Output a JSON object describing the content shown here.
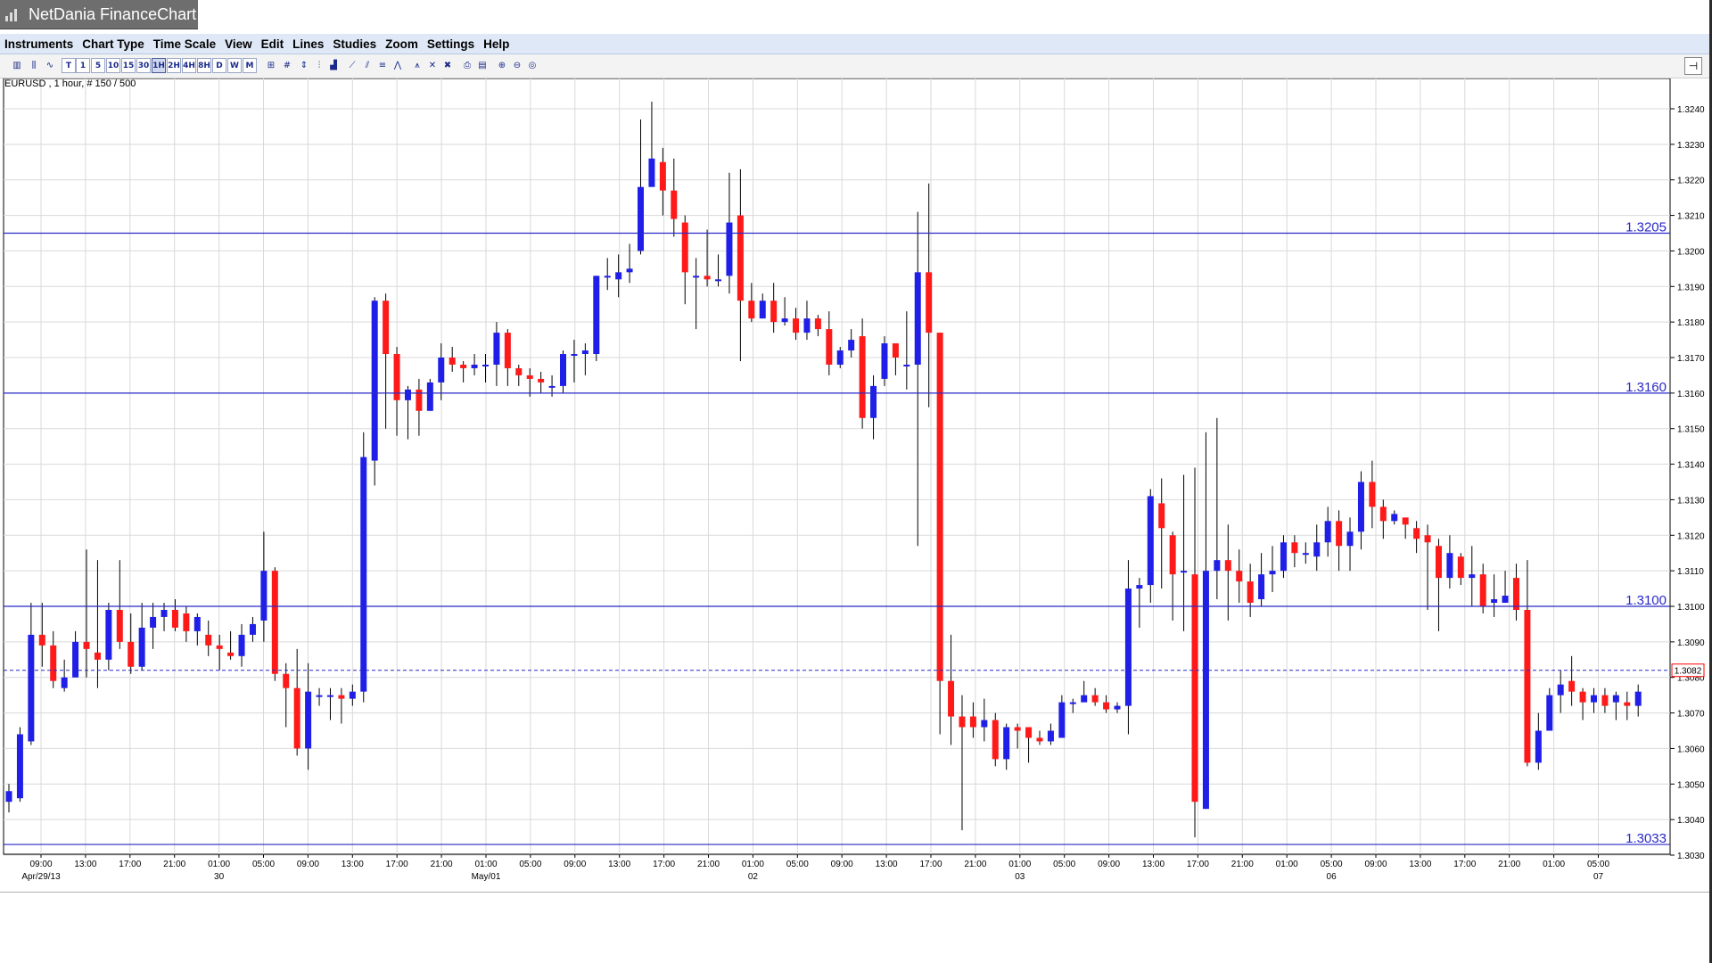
{
  "app": {
    "title": "NetDania FinanceChart"
  },
  "menu": [
    "Instruments",
    "Chart Type",
    "Time Scale",
    "View",
    "Edit",
    "Lines",
    "Studies",
    "Zoom",
    "Settings",
    "Help"
  ],
  "toolbar": {
    "timeframes": [
      "T",
      "1",
      "5",
      "10",
      "15",
      "30",
      "1H",
      "2H",
      "4H",
      "8H",
      "D",
      "W",
      "M"
    ],
    "selected_timeframe": "1H"
  },
  "chart_label": "EURUSD , 1 hour, # 150 / 500",
  "colors": {
    "up": "#1f1fe8",
    "down": "#ff1a1a",
    "grid": "#d9d9d9",
    "level_line": "#2929c8",
    "current_line": "#2929c8"
  },
  "chart_data": {
    "type": "candlestick",
    "symbol": "EURUSD",
    "ylim": [
      1.303,
      1.3245
    ],
    "yticks": [
      "1.3030",
      "1.3040",
      "1.3050",
      "1.3060",
      "1.3070",
      "1.3080",
      "1.3090",
      "1.3100",
      "1.3110",
      "1.3120",
      "1.3130",
      "1.3140",
      "1.3150",
      "1.3160",
      "1.3170",
      "1.3180",
      "1.3190",
      "1.3200",
      "1.3210",
      "1.3220",
      "1.3230",
      "1.3240"
    ],
    "xticks": [
      "09:00",
      "13:00",
      "17:00",
      "21:00",
      "01:00",
      "05:00",
      "09:00",
      "13:00",
      "17:00",
      "21:00",
      "01:00",
      "05:00",
      "09:00",
      "13:00",
      "17:00",
      "21:00",
      "01:00",
      "05:00",
      "09:00",
      "13:00",
      "17:00",
      "21:00",
      "01:00",
      "05:00",
      "09:00",
      "13:00",
      "17:00",
      "21:00",
      "01:00",
      "05:00",
      "09:00",
      "13:00",
      "17:00",
      "21:00",
      "01:00",
      "05:00"
    ],
    "date_labels": [
      {
        "label": "Apr/29/13",
        "tick": 0
      },
      {
        "label": "30",
        "tick": 4
      },
      {
        "label": "May/01",
        "tick": 10
      },
      {
        "label": "02",
        "tick": 16
      },
      {
        "label": "03",
        "tick": 22
      },
      {
        "label": "06",
        "tick": 29
      },
      {
        "label": "07",
        "tick": 35
      }
    ],
    "horizontal_lines": [
      {
        "value": 1.3205,
        "label": "1.3205"
      },
      {
        "value": 1.316,
        "label": "1.3160"
      },
      {
        "value": 1.31,
        "label": "1.3100"
      },
      {
        "value": 1.3033,
        "label": "1.3033"
      }
    ],
    "current_price": {
      "value": 1.3082,
      "label": "1.3082"
    },
    "candles": [
      [
        1.3045,
        1.3048,
        1.3042,
        1.305
      ],
      [
        1.3046,
        1.3064,
        1.3045,
        1.3066
      ],
      [
        1.3062,
        1.3092,
        1.3061,
        1.3101
      ],
      [
        1.3092,
        1.3089,
        1.3083,
        1.3101
      ],
      [
        1.3089,
        1.3079,
        1.3077,
        1.3093
      ],
      [
        1.3077,
        1.308,
        1.3076,
        1.3085
      ],
      [
        1.308,
        1.309,
        1.308,
        1.3093
      ],
      [
        1.309,
        1.3088,
        1.308,
        1.3116
      ],
      [
        1.3087,
        1.3085,
        1.3077,
        1.3113
      ],
      [
        1.3085,
        1.3099,
        1.3082,
        1.3101
      ],
      [
        1.3099,
        1.309,
        1.3088,
        1.3113
      ],
      [
        1.309,
        1.3083,
        1.3081,
        1.3098
      ],
      [
        1.3083,
        1.3094,
        1.3082,
        1.3101
      ],
      [
        1.3094,
        1.3097,
        1.3088,
        1.3101
      ],
      [
        1.3097,
        1.3099,
        1.3093,
        1.3101
      ],
      [
        1.3099,
        1.3094,
        1.3093,
        1.3102
      ],
      [
        1.3098,
        1.3093,
        1.309,
        1.31
      ],
      [
        1.3093,
        1.3097,
        1.3089,
        1.3098
      ],
      [
        1.3092,
        1.3089,
        1.3086,
        1.3096
      ],
      [
        1.3089,
        1.3088,
        1.3082,
        1.3092
      ],
      [
        1.3087,
        1.3086,
        1.3085,
        1.3093
      ],
      [
        1.3086,
        1.3092,
        1.3083,
        1.3095
      ],
      [
        1.3092,
        1.3095,
        1.309,
        1.3097
      ],
      [
        1.3096,
        1.311,
        1.309,
        1.3121
      ],
      [
        1.311,
        1.3081,
        1.3079,
        1.3111
      ],
      [
        1.3081,
        1.3077,
        1.3066,
        1.3084
      ],
      [
        1.3077,
        1.306,
        1.3058,
        1.3088
      ],
      [
        1.306,
        1.3076,
        1.3054,
        1.3084
      ],
      [
        1.3075,
        1.3075,
        1.3072,
        1.3077
      ],
      [
        1.3075,
        1.3075,
        1.3068,
        1.3077
      ],
      [
        1.3075,
        1.3074,
        1.3067,
        1.3077
      ],
      [
        1.3074,
        1.3076,
        1.3072,
        1.3078
      ],
      [
        1.3076,
        1.3142,
        1.3073,
        1.3149
      ],
      [
        1.3141,
        1.3186,
        1.3134,
        1.3187
      ],
      [
        1.3186,
        1.3171,
        1.315,
        1.3188
      ],
      [
        1.3171,
        1.3158,
        1.3148,
        1.3173
      ],
      [
        1.3158,
        1.3161,
        1.3147,
        1.3162
      ],
      [
        1.3161,
        1.3155,
        1.3148,
        1.3164
      ],
      [
        1.3155,
        1.3163,
        1.3155,
        1.3164
      ],
      [
        1.3163,
        1.317,
        1.3158,
        1.3174
      ],
      [
        1.317,
        1.3168,
        1.3166,
        1.3173
      ],
      [
        1.3168,
        1.3167,
        1.3163,
        1.3169
      ],
      [
        1.3167,
        1.3168,
        1.3165,
        1.3171
      ],
      [
        1.3168,
        1.3168,
        1.3163,
        1.3171
      ],
      [
        1.3168,
        1.3177,
        1.3162,
        1.318
      ],
      [
        1.3177,
        1.3167,
        1.3162,
        1.3178
      ],
      [
        1.3167,
        1.3165,
        1.3162,
        1.3168
      ],
      [
        1.3165,
        1.3164,
        1.3159,
        1.3167
      ],
      [
        1.3164,
        1.3163,
        1.316,
        1.3166
      ],
      [
        1.3162,
        1.3162,
        1.3159,
        1.3165
      ],
      [
        1.3162,
        1.3171,
        1.316,
        1.3172
      ],
      [
        1.3171,
        1.3171,
        1.3163,
        1.3175
      ],
      [
        1.3171,
        1.3172,
        1.3165,
        1.3174
      ],
      [
        1.3171,
        1.3193,
        1.3169,
        1.3193
      ],
      [
        1.3193,
        1.3193,
        1.3189,
        1.3198
      ],
      [
        1.3192,
        1.3194,
        1.3187,
        1.3199
      ],
      [
        1.3194,
        1.3195,
        1.3191,
        1.3202
      ],
      [
        1.32,
        1.3218,
        1.3199,
        1.3237
      ],
      [
        1.3218,
        1.3226,
        1.322,
        1.3242
      ],
      [
        1.3225,
        1.3217,
        1.321,
        1.3229
      ],
      [
        1.3217,
        1.3209,
        1.3204,
        1.3226
      ],
      [
        1.3208,
        1.3194,
        1.3185,
        1.321
      ],
      [
        1.3193,
        1.3193,
        1.3178,
        1.3198
      ],
      [
        1.3193,
        1.3192,
        1.319,
        1.3206
      ],
      [
        1.3192,
        1.3192,
        1.319,
        1.3199
      ],
      [
        1.3193,
        1.3208,
        1.3188,
        1.3222
      ],
      [
        1.321,
        1.3186,
        1.3169,
        1.3223
      ],
      [
        1.3186,
        1.3181,
        1.318,
        1.3191
      ],
      [
        1.3181,
        1.3186,
        1.3181,
        1.3188
      ],
      [
        1.3186,
        1.318,
        1.3177,
        1.3191
      ],
      [
        1.318,
        1.3181,
        1.3179,
        1.3187
      ],
      [
        1.3181,
        1.3177,
        1.3175,
        1.3184
      ],
      [
        1.3177,
        1.3181,
        1.3175,
        1.3186
      ],
      [
        1.3181,
        1.3178,
        1.3176,
        1.3182
      ],
      [
        1.3178,
        1.3168,
        1.3165,
        1.3183
      ],
      [
        1.3168,
        1.3172,
        1.3167,
        1.3173
      ],
      [
        1.3172,
        1.3175,
        1.317,
        1.3178
      ],
      [
        1.3176,
        1.3153,
        1.315,
        1.3181
      ],
      [
        1.3153,
        1.3162,
        1.3147,
        1.3165
      ],
      [
        1.3164,
        1.3174,
        1.3162,
        1.3176
      ],
      [
        1.3174,
        1.317,
        1.3165,
        1.3172
      ],
      [
        1.3168,
        1.3168,
        1.3161,
        1.3183
      ],
      [
        1.3168,
        1.3194,
        1.3117,
        1.3211
      ],
      [
        1.3194,
        1.3177,
        1.3156,
        1.3219
      ],
      [
        1.3177,
        1.3079,
        1.3064,
        1.3177
      ],
      [
        1.3079,
        1.3069,
        1.3061,
        1.3092
      ],
      [
        1.3069,
        1.3066,
        1.3037,
        1.3075
      ],
      [
        1.3069,
        1.3066,
        1.3063,
        1.3073
      ],
      [
        1.3066,
        1.3068,
        1.3062,
        1.3074
      ],
      [
        1.3068,
        1.3057,
        1.3055,
        1.307
      ],
      [
        1.3057,
        1.3066,
        1.3054,
        1.3067
      ],
      [
        1.3066,
        1.3065,
        1.306,
        1.3067
      ],
      [
        1.3066,
        1.3063,
        1.3056,
        1.3065
      ],
      [
        1.3063,
        1.3062,
        1.3061,
        1.3065
      ],
      [
        1.3062,
        1.3065,
        1.3061,
        1.3067
      ],
      [
        1.3063,
        1.3073,
        1.3063,
        1.3075
      ],
      [
        1.3073,
        1.3073,
        1.307,
        1.3074
      ],
      [
        1.3073,
        1.3075,
        1.3073,
        1.3079
      ],
      [
        1.3075,
        1.3073,
        1.3072,
        1.3077
      ],
      [
        1.3073,
        1.3071,
        1.307,
        1.3075
      ],
      [
        1.3071,
        1.3072,
        1.307,
        1.3073
      ],
      [
        1.3072,
        1.3105,
        1.3064,
        1.3113
      ],
      [
        1.3105,
        1.3106,
        1.3094,
        1.3108
      ],
      [
        1.3106,
        1.3131,
        1.3101,
        1.3133
      ],
      [
        1.3129,
        1.3122,
        1.3105,
        1.3136
      ],
      [
        1.312,
        1.3109,
        1.3096,
        1.3121
      ],
      [
        1.311,
        1.311,
        1.3093,
        1.3137
      ],
      [
        1.3109,
        1.3045,
        1.3035,
        1.3139
      ],
      [
        1.3043,
        1.311,
        1.3043,
        1.3149
      ],
      [
        1.311,
        1.3113,
        1.3102,
        1.3153
      ],
      [
        1.3113,
        1.311,
        1.3096,
        1.3123
      ],
      [
        1.311,
        1.3107,
        1.3101,
        1.3116
      ],
      [
        1.3107,
        1.3101,
        1.3097,
        1.3112
      ],
      [
        1.3102,
        1.3109,
        1.31,
        1.3115
      ],
      [
        1.3109,
        1.311,
        1.3104,
        1.3117
      ],
      [
        1.311,
        1.3118,
        1.3108,
        1.312
      ],
      [
        1.3118,
        1.3115,
        1.3111,
        1.312
      ],
      [
        1.3115,
        1.3115,
        1.3112,
        1.3118
      ],
      [
        1.3114,
        1.3118,
        1.311,
        1.3123
      ],
      [
        1.3118,
        1.3124,
        1.3114,
        1.3128
      ],
      [
        1.3124,
        1.3117,
        1.311,
        1.3127
      ],
      [
        1.3117,
        1.3121,
        1.311,
        1.3125
      ],
      [
        1.3121,
        1.3135,
        1.3116,
        1.3138
      ],
      [
        1.3135,
        1.3128,
        1.3122,
        1.3141
      ],
      [
        1.3128,
        1.3124,
        1.3119,
        1.313
      ],
      [
        1.3124,
        1.3126,
        1.3123,
        1.3127
      ],
      [
        1.3125,
        1.3123,
        1.3119,
        1.3124
      ],
      [
        1.3122,
        1.3119,
        1.3115,
        1.3124
      ],
      [
        1.312,
        1.3118,
        1.3099,
        1.3123
      ],
      [
        1.3117,
        1.3108,
        1.3093,
        1.3119
      ],
      [
        1.3108,
        1.3115,
        1.3105,
        1.312
      ],
      [
        1.3114,
        1.3108,
        1.3106,
        1.3115
      ],
      [
        1.3108,
        1.3109,
        1.31,
        1.3117
      ],
      [
        1.3109,
        1.31,
        1.3098,
        1.3112
      ],
      [
        1.3101,
        1.3102,
        1.3097,
        1.3109
      ],
      [
        1.3101,
        1.3103,
        1.3101,
        1.311
      ],
      [
        1.3108,
        1.3099,
        1.3096,
        1.3112
      ],
      [
        1.3099,
        1.3056,
        1.3055,
        1.3113
      ],
      [
        1.3056,
        1.3065,
        1.3054,
        1.307
      ],
      [
        1.3065,
        1.3075,
        1.3065,
        1.3077
      ],
      [
        1.3075,
        1.3078,
        1.307,
        1.3082
      ],
      [
        1.3079,
        1.3076,
        1.3072,
        1.3086
      ],
      [
        1.3076,
        1.3073,
        1.3068,
        1.3077
      ],
      [
        1.3073,
        1.3075,
        1.307,
        1.3077
      ],
      [
        1.3075,
        1.3072,
        1.307,
        1.3077
      ],
      [
        1.3073,
        1.3075,
        1.3068,
        1.3076
      ],
      [
        1.3073,
        1.3072,
        1.3068,
        1.3076
      ],
      [
        1.3072,
        1.3076,
        1.3069,
        1.3078
      ]
    ]
  }
}
